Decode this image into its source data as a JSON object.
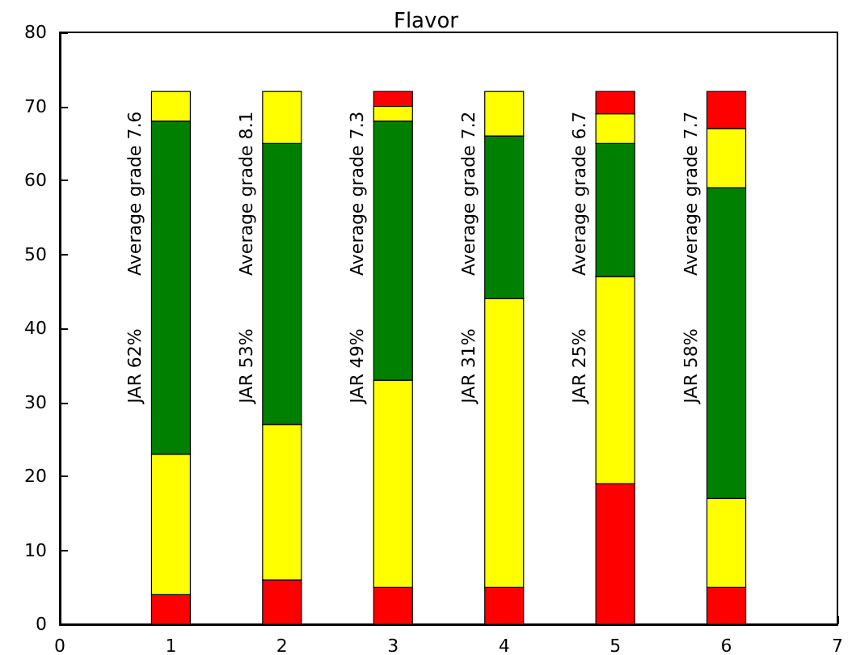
{
  "chart_data": {
    "type": "bar",
    "title": "Flavor",
    "stacked": true,
    "x": [
      1,
      2,
      3,
      4,
      5,
      6
    ],
    "series": [
      {
        "color": "#ff0000",
        "values": [
          4,
          6,
          5,
          5,
          19,
          5
        ]
      },
      {
        "color": "#ffff00",
        "values": [
          19,
          21,
          28,
          39,
          28,
          12
        ]
      },
      {
        "color": "#008000",
        "values": [
          45,
          38,
          35,
          22,
          18,
          42
        ]
      },
      {
        "color": "#ffff00",
        "values": [
          4,
          7,
          2,
          6,
          4,
          8
        ]
      },
      {
        "color": "#ff0000",
        "values": [
          null,
          null,
          2,
          null,
          3,
          5
        ]
      }
    ],
    "xlim": [
      0,
      7
    ],
    "xticks": [
      0,
      1,
      2,
      3,
      4,
      5,
      6,
      7
    ],
    "ylim": [
      0,
      80
    ],
    "yticks": [
      0,
      10,
      20,
      30,
      40,
      50,
      60,
      70,
      80
    ],
    "grid": false,
    "annotations": [
      "JAR 62%",
      "Average grade 7.6",
      "JAR 53%",
      "Average grade 8.1",
      "JAR 49%",
      "Average grade 7.3",
      "JAR 31%",
      "Average grade 7.2",
      "JAR 25%",
      "Average grade 6.7",
      "JAR 58%",
      "Average grade 7.7"
    ]
  }
}
